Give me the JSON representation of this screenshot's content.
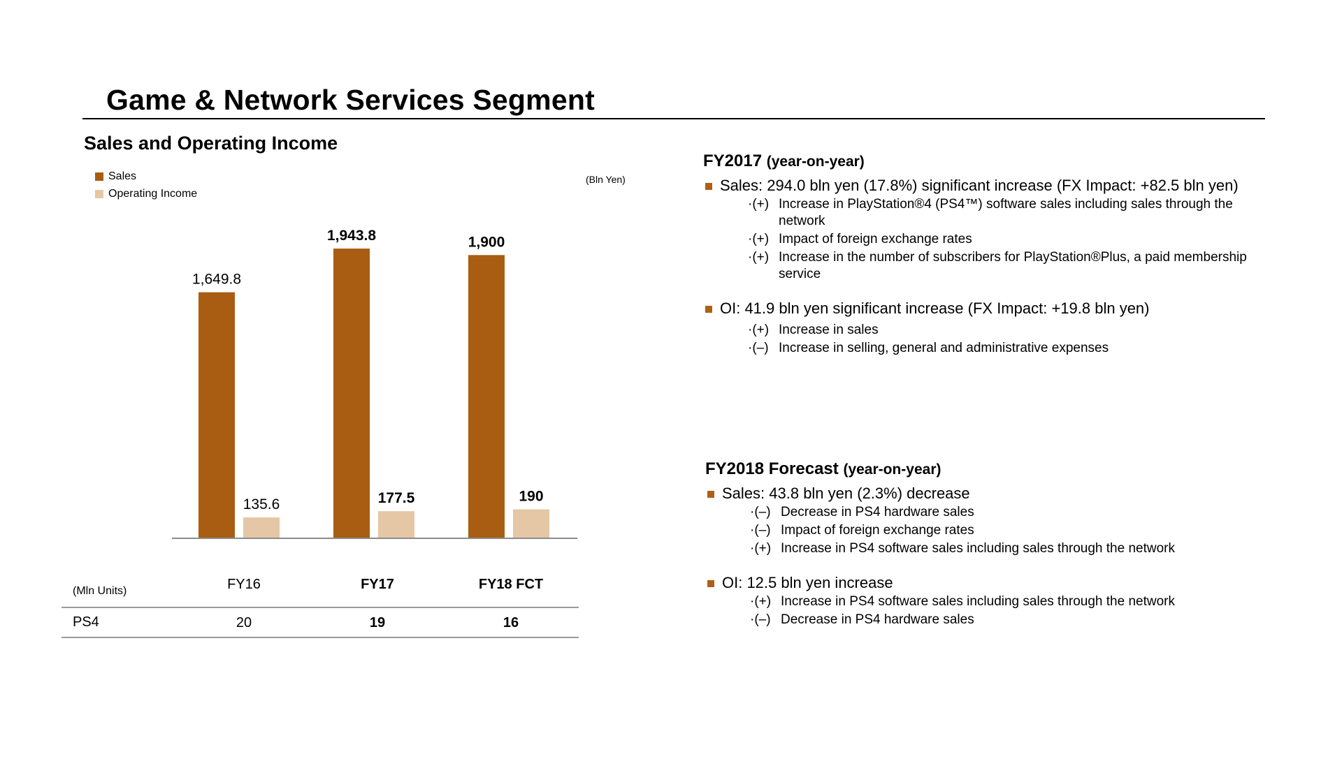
{
  "page": {
    "title": "Game & Network Services Segment",
    "section_title": "Sales and Operating Income",
    "unit_label": "(Bln Yen)"
  },
  "legend": [
    {
      "label": "Sales",
      "color": "#a85d12"
    },
    {
      "label": "Operating Income",
      "color": "#e5c6a5"
    }
  ],
  "chart_data": {
    "type": "bar",
    "title": "Sales and Operating Income",
    "categories": [
      "FY16",
      "FY17",
      "FY18 FCT"
    ],
    "category_bold": [
      false,
      true,
      true
    ],
    "series": [
      {
        "name": "Sales",
        "values": [
          1649.8,
          1943.8,
          1900
        ],
        "labels": [
          "1,649.8",
          "1,943.8",
          "1,900"
        ],
        "color": "#a85d12"
      },
      {
        "name": "Operating Income",
        "values": [
          135.6,
          177.5,
          190
        ],
        "labels": [
          "135.6",
          "177.5",
          "190"
        ],
        "color": "#e5c6a5"
      }
    ],
    "ylim": [
      0,
      1943.8
    ],
    "grid": false,
    "legend_position": "top-left",
    "unit": "(Bln Yen)"
  },
  "units_table": {
    "header_label": "(Mln Units)",
    "columns": [
      "FY16",
      "FY17",
      "FY18 FCT"
    ],
    "rows": [
      {
        "label": "PS4",
        "values": [
          "20",
          "19",
          "16"
        ]
      }
    ]
  },
  "fy2017": {
    "heading": "FY2017",
    "heading_suffix": "(year-on-year)",
    "bullets": [
      {
        "text": "Sales: 294.0 bln yen (17.8%) significant increase (FX Impact: +82.5 bln yen)",
        "subs": [
          {
            "prefix": "·(+)",
            "text": "Increase in PlayStation®4 (PS4™) software sales including sales through the network"
          },
          {
            "prefix": "·(+)",
            "text": "Impact of foreign exchange rates"
          },
          {
            "prefix": "·(+)",
            "text": "Increase in the number of subscribers for PlayStation®Plus, a paid membership service"
          }
        ]
      },
      {
        "text": "OI: 41.9 bln yen significant increase (FX Impact: +19.8 bln yen)",
        "subs": [
          {
            "prefix": "·(+)",
            "text": "Increase in sales"
          },
          {
            "prefix": "·(–)",
            "text": "Increase in selling, general and administrative expenses"
          }
        ]
      }
    ]
  },
  "fy2018": {
    "heading": "FY2018 Forecast",
    "heading_suffix": "(year-on-year)",
    "bullets": [
      {
        "text": "Sales: 43.8 bln yen (2.3%) decrease",
        "subs": [
          {
            "prefix": "·(–)",
            "text": "Decrease in PS4 hardware sales"
          },
          {
            "prefix": "·(–)",
            "text": "Impact of foreign exchange rates"
          },
          {
            "prefix": "·(+)",
            "text": "Increase in PS4 software sales including sales through the network"
          }
        ]
      },
      {
        "text": "OI: 12.5 bln yen increase",
        "subs": [
          {
            "prefix": "·(+)",
            "text": "Increase in PS4 software sales including sales through the network"
          },
          {
            "prefix": "·(–)",
            "text": "Decrease in PS4 hardware sales"
          }
        ]
      }
    ]
  }
}
